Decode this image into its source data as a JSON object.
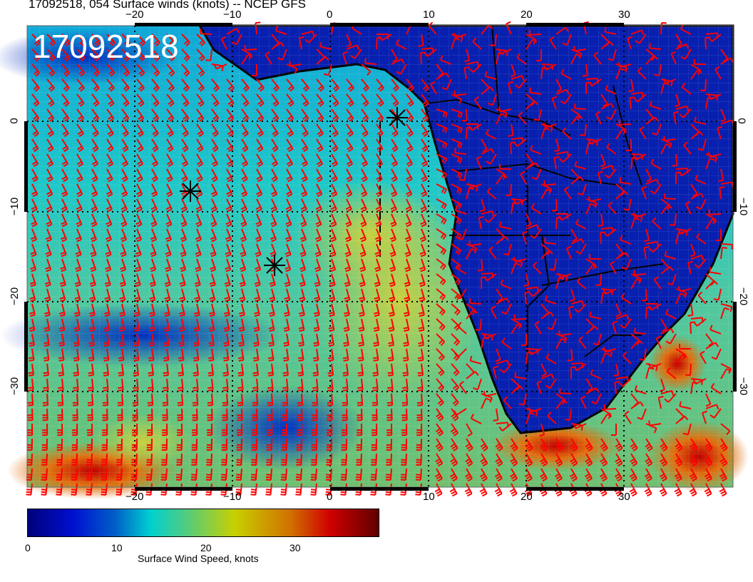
{
  "title": "17092518, 054 Surface winds (knots) -- NCEP GFS",
  "date_stamp": "17092518",
  "map": {
    "type": "wind barb map over colored wind speed field",
    "region": "South Atlantic and southern Africa",
    "lon_ticks": [
      "−20",
      "−10",
      "0",
      "10",
      "20",
      "30"
    ],
    "lat_ticks": [
      "0",
      "−10",
      "−20",
      "−30"
    ],
    "barb_color": "#ff0000",
    "land_outline_color": "#000000",
    "markers": "asterisk"
  },
  "colorbar": {
    "label": "Surface Wind Speed, knots",
    "ticks": [
      "0",
      "10",
      "20",
      "30"
    ],
    "colors": [
      "#00007a",
      "#0010d0",
      "#00d0d0",
      "#c8d000",
      "#d00000",
      "#600000"
    ]
  }
}
